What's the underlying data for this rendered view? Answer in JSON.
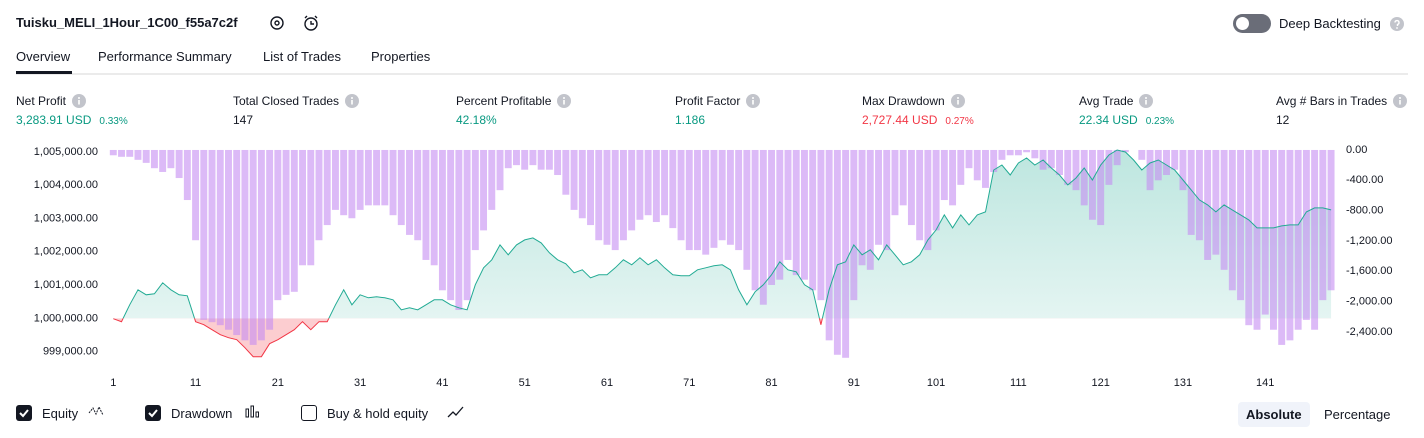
{
  "header": {
    "title": "Tuisku_MELI_1Hour_1C00_f55a7c2f",
    "toggle_label": "Deep Backtesting",
    "toggle_on": false
  },
  "tabs": [
    {
      "label": "Overview",
      "active": true
    },
    {
      "label": "Performance Summary",
      "active": false
    },
    {
      "label": "List of Trades",
      "active": false
    },
    {
      "label": "Properties",
      "active": false
    }
  ],
  "stats": [
    {
      "label": "Net Profit",
      "value": "3,283.91 USD",
      "percent": "0.33%",
      "color": "#089981"
    },
    {
      "label": "Total Closed Trades",
      "value": "147",
      "color": "#131722"
    },
    {
      "label": "Percent Profitable",
      "value": "42.18%",
      "color": "#089981"
    },
    {
      "label": "Profit Factor",
      "value": "1.186",
      "color": "#089981"
    },
    {
      "label": "Max Drawdown",
      "value": "2,727.44 USD",
      "percent": "0.27%",
      "color": "#f23645"
    },
    {
      "label": "Avg Trade",
      "value": "22.34 USD",
      "percent": "0.23%",
      "color": "#089981"
    },
    {
      "label": "Avg # Bars in Trades",
      "value": "12",
      "color": "#131722"
    }
  ],
  "chart_data": {
    "type": "equity",
    "xlim": [
      0.6,
      149.6
    ],
    "xticks": [
      1,
      11,
      21,
      31,
      41,
      51,
      61,
      71,
      81,
      91,
      101,
      111,
      121,
      131,
      141
    ],
    "ylim": [
      998600,
      1005120
    ],
    "yticks": [
      {
        "value": 1005000,
        "label": "1,005,000.00"
      },
      {
        "value": 1004000,
        "label": "1,004,000.00"
      },
      {
        "value": 1003000,
        "label": "1,003,000.00"
      },
      {
        "value": 1002000,
        "label": "1,002,000.00"
      },
      {
        "value": 1001000,
        "label": "1,001,000.00"
      },
      {
        "value": 1000000,
        "label": "1,000,000.00"
      },
      {
        "value": 999000,
        "label": "999,000.00"
      }
    ],
    "y2lim": [
      -2835,
      26
    ],
    "y2ticks": [
      {
        "value": 0,
        "label": "0.00"
      },
      {
        "value": -400,
        "label": "-400.00"
      },
      {
        "value": -800,
        "label": "-800.00"
      },
      {
        "value": -1200,
        "label": "-1,200.00"
      },
      {
        "value": -1600,
        "label": "-1,600.00"
      },
      {
        "value": -2000,
        "label": "-2,000.00"
      },
      {
        "value": -2400,
        "label": "-2,400.00"
      }
    ],
    "series": [
      {
        "name": "Equity",
        "kind": "line",
        "axis": "y",
        "color": "#22ab94",
        "below_color": "#f23645",
        "values": [
          999990,
          999900,
          1000410,
          1000860,
          1000710,
          1000740,
          1001070,
          1000860,
          1000710,
          1000680,
          999900,
          999810,
          999660,
          999510,
          999420,
          999360,
          999120,
          998850,
          998850,
          999240,
          999360,
          999510,
          999660,
          999900,
          999660,
          999900,
          999900,
          1000410,
          1000860,
          1000410,
          1000710,
          1000620,
          1000650,
          1000620,
          1000560,
          1000260,
          1000320,
          1000260,
          1000410,
          1000560,
          1000560,
          1000410,
          1000320,
          1000260,
          1001010,
          1001520,
          1001760,
          1002210,
          1001910,
          1002210,
          1002360,
          1002420,
          1002270,
          1001970,
          1001760,
          1001640,
          1001370,
          1001460,
          1001220,
          1001310,
          1001310,
          1001520,
          1001760,
          1001610,
          1001820,
          1001610,
          1001760,
          1001520,
          1001310,
          1001280,
          1001280,
          1001460,
          1001520,
          1001580,
          1001610,
          1001460,
          1000860,
          1000410,
          1000800,
          1001010,
          1001310,
          1001700,
          1001460,
          1001400,
          1001010,
          1000860,
          999810,
          1000860,
          1001610,
          1001700,
          1002210,
          1001910,
          1002060,
          1001760,
          1002210,
          1001910,
          1001610,
          1001700,
          1001910,
          1002360,
          1002660,
          1003110,
          1002720,
          1003110,
          1002810,
          1003110,
          1003200,
          1004460,
          1004610,
          1004310,
          1004670,
          1004820,
          1004610,
          1004760,
          1004520,
          1004310,
          1004010,
          1004220,
          1004520,
          1004160,
          1004610,
          1004910,
          1005060,
          1005000,
          1004760,
          1004460,
          1004670,
          1004760,
          1004610,
          1004460,
          1004160,
          1003860,
          1003560,
          1003410,
          1003200,
          1003410,
          1003260,
          1003110,
          1002960,
          1002720,
          1002720,
          1002720,
          1002780,
          1002810,
          1002810,
          1003200,
          1003320,
          1003320,
          1003260
        ]
      },
      {
        "name": "Drawdown",
        "kind": "bar",
        "axis": "y2",
        "color": "#c48cf2",
        "values": [
          -70,
          -90,
          -90,
          -130,
          -170,
          -240,
          -290,
          -240,
          -370,
          -660,
          -1190,
          -2240,
          -2270,
          -2310,
          -2370,
          -2440,
          -2510,
          -2570,
          -2510,
          -2370,
          -1980,
          -1910,
          -1870,
          -1520,
          -1520,
          -1190,
          -990,
          -790,
          -860,
          -900,
          -790,
          -730,
          -730,
          -730,
          -860,
          -990,
          -1120,
          -1190,
          -1450,
          -1520,
          -1850,
          -1980,
          -2110,
          -1980,
          -1320,
          -1060,
          -790,
          -530,
          -240,
          -200,
          -260,
          -200,
          -260,
          -260,
          -330,
          -590,
          -790,
          -900,
          -990,
          -1190,
          -1250,
          -1320,
          -1190,
          -1060,
          -920,
          -860,
          -950,
          -860,
          -1030,
          -1190,
          -1320,
          -1320,
          -1380,
          -1290,
          -1190,
          -1250,
          -1320,
          -1580,
          -1850,
          -2040,
          -1780,
          -1710,
          -1450,
          -1650,
          -1710,
          -1850,
          -1980,
          -2510,
          -2700,
          -2740,
          -1980,
          -1520,
          -1580,
          -1250,
          -1320,
          -860,
          -730,
          -990,
          -1190,
          -1320,
          -1060,
          -660,
          -730,
          -460,
          -240,
          -400,
          -500,
          -290,
          -130,
          -70,
          -70,
          -30,
          -110,
          -260,
          -240,
          -330,
          -460,
          -530,
          -730,
          -920,
          -990,
          -460,
          -200,
          -30,
          0,
          -130,
          -530,
          -400,
          -330,
          -260,
          -530,
          -1120,
          -1190,
          -1450,
          -1380,
          -1580,
          -1850,
          -1980,
          -2310,
          -2370,
          -2170,
          -2370,
          -2570,
          -2510,
          -2370,
          -2240,
          -2370,
          -1980,
          -1850
        ]
      }
    ]
  },
  "toggles": [
    {
      "label": "Equity",
      "checked": true
    },
    {
      "label": "Drawdown",
      "checked": true
    },
    {
      "label": "Buy & hold equity",
      "checked": false
    }
  ],
  "modes": [
    {
      "label": "Absolute",
      "selected": true
    },
    {
      "label": "Percentage",
      "selected": false
    }
  ]
}
